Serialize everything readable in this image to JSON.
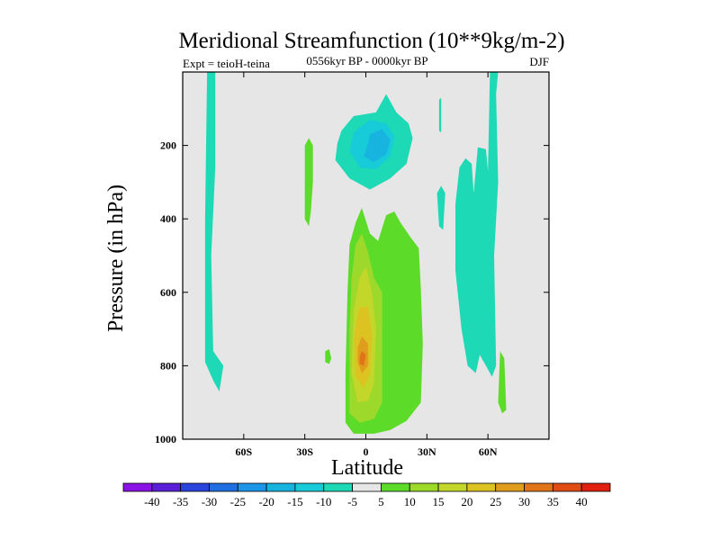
{
  "chart_data": {
    "type": "heatmap",
    "title": "Meridional Streamfunction (10**9kg/m-2)",
    "left_note": "Expt = teioH-teina",
    "center_note": "0556kyr BP - 0000kyr BP",
    "right_note": "DJF",
    "xlabel": "Latitude",
    "ylabel": "Pressure (in hPa)",
    "xlim": [
      -90,
      90
    ],
    "ylim": [
      1000,
      0
    ],
    "x_ticks": [
      {
        "value": -60,
        "label": "60S"
      },
      {
        "value": -30,
        "label": "30S"
      },
      {
        "value": 0,
        "label": "0"
      },
      {
        "value": 30,
        "label": "30N"
      },
      {
        "value": 60,
        "label": "60N"
      }
    ],
    "y_ticks": [
      {
        "value": 200,
        "label": "200"
      },
      {
        "value": 400,
        "label": "400"
      },
      {
        "value": 600,
        "label": "600"
      },
      {
        "value": 800,
        "label": "800"
      },
      {
        "value": 1000,
        "label": "1000"
      }
    ],
    "contour_levels": [
      -40,
      -35,
      -30,
      -25,
      -20,
      -15,
      -10,
      -5,
      5,
      10,
      15,
      20,
      25,
      30,
      35,
      40
    ],
    "level_labels": [
      "-40",
      "-35",
      "-30",
      "-25",
      "-20",
      "-15",
      "-10",
      "-5",
      "5",
      "10",
      "15",
      "20",
      "25",
      "30",
      "35",
      "40"
    ],
    "colorbar_colors": [
      "#8a13e6",
      "#5a1fd6",
      "#2a44dc",
      "#1f6fe0",
      "#1d95e8",
      "#18b4e0",
      "#18cbd8",
      "#1ed9b6",
      "#e6e6e6",
      "#5ddb29",
      "#9cd92b",
      "#c3d62a",
      "#dcc322",
      "#e09c1c",
      "#e07418",
      "#e04d14",
      "#e02010"
    ],
    "background_color": "#e6e6e6",
    "regions": [
      {
        "value": -7,
        "color": "#1ed9b6",
        "points": [
          [
            -78,
            0
          ],
          [
            -74,
            0
          ],
          [
            -74,
            260
          ],
          [
            -76,
            500
          ],
          [
            -75,
            760
          ],
          [
            -70,
            800
          ],
          [
            -72,
            870
          ],
          [
            -75,
            840
          ],
          [
            -79,
            790
          ],
          [
            -79,
            400
          ]
        ]
      },
      {
        "value": -7,
        "color": "#1ed9b6",
        "points": [
          [
            -12,
            160
          ],
          [
            -6,
            120
          ],
          [
            5,
            110
          ],
          [
            10,
            60
          ],
          [
            15,
            110
          ],
          [
            21,
            140
          ],
          [
            23,
            180
          ],
          [
            20,
            250
          ],
          [
            12,
            290
          ],
          [
            2,
            320
          ],
          [
            -8,
            290
          ],
          [
            -15,
            240
          ],
          [
            -14,
            195
          ]
        ]
      },
      {
        "value": -12,
        "color": "#18cbd8",
        "points": [
          [
            -6,
            165
          ],
          [
            2,
            130
          ],
          [
            10,
            140
          ],
          [
            14,
            175
          ],
          [
            12,
            230
          ],
          [
            5,
            265
          ],
          [
            -3,
            260
          ],
          [
            -8,
            215
          ]
        ]
      },
      {
        "value": -17,
        "color": "#18b4e0",
        "points": [
          [
            2,
            170
          ],
          [
            8,
            155
          ],
          [
            12,
            185
          ],
          [
            10,
            225
          ],
          [
            4,
            245
          ],
          [
            -1,
            230
          ],
          [
            1,
            195
          ]
        ]
      },
      {
        "value": -7,
        "color": "#1ed9b6",
        "points": [
          [
            35,
            330
          ],
          [
            37,
            310
          ],
          [
            39,
            330
          ],
          [
            38,
            430
          ],
          [
            36,
            420
          ]
        ]
      },
      {
        "value": -7,
        "color": "#1ed9b6",
        "points": [
          [
            46,
            260
          ],
          [
            49,
            235
          ],
          [
            52,
            250
          ],
          [
            53,
            330
          ],
          [
            55,
            205
          ],
          [
            59,
            210
          ],
          [
            60,
            270
          ],
          [
            61,
            0
          ],
          [
            65,
            0
          ],
          [
            64,
            60
          ],
          [
            65,
            300
          ],
          [
            63,
            500
          ],
          [
            64,
            800
          ],
          [
            62,
            830
          ],
          [
            58,
            790
          ],
          [
            56,
            770
          ],
          [
            54,
            820
          ],
          [
            50,
            800
          ],
          [
            47,
            700
          ],
          [
            44,
            540
          ],
          [
            44,
            360
          ]
        ]
      },
      {
        "value": -7,
        "color": "#1ed9b6",
        "points": [
          [
            36,
            75
          ],
          [
            37,
            70
          ],
          [
            37,
            165
          ],
          [
            36,
            160
          ]
        ]
      },
      {
        "value": 7,
        "color": "#5ddb29",
        "points": [
          [
            -30,
            200
          ],
          [
            -28,
            180
          ],
          [
            -26,
            200
          ],
          [
            -26,
            300
          ],
          [
            -27,
            380
          ],
          [
            -28,
            420
          ],
          [
            -30,
            400
          ],
          [
            -30,
            300
          ]
        ]
      },
      {
        "value": 7,
        "color": "#5ddb29",
        "points": [
          [
            -20,
            760
          ],
          [
            -18,
            755
          ],
          [
            -17,
            780
          ],
          [
            -18,
            795
          ],
          [
            -20,
            790
          ]
        ]
      },
      {
        "value": 7,
        "color": "#5ddb29",
        "points": [
          [
            -5,
            410
          ],
          [
            -2,
            370
          ],
          [
            2,
            440
          ],
          [
            6,
            460
          ],
          [
            10,
            390
          ],
          [
            14,
            380
          ],
          [
            17,
            410
          ],
          [
            22,
            450
          ],
          [
            26,
            480
          ],
          [
            27,
            590
          ],
          [
            28,
            740
          ],
          [
            27,
            900
          ],
          [
            20,
            950
          ],
          [
            12,
            975
          ],
          [
            4,
            985
          ],
          [
            -6,
            985
          ],
          [
            -10,
            955
          ],
          [
            -10,
            820
          ],
          [
            -9,
            600
          ],
          [
            -8,
            470
          ]
        ]
      },
      {
        "value": 7,
        "color": "#5ddb29",
        "points": [
          [
            66,
            760
          ],
          [
            68,
            780
          ],
          [
            69,
            920
          ],
          [
            67,
            930
          ],
          [
            65,
            900
          ]
        ]
      },
      {
        "value": 12,
        "color": "#9cd92b",
        "points": [
          [
            -5,
            470
          ],
          [
            -2,
            440
          ],
          [
            1,
            490
          ],
          [
            4,
            560
          ],
          [
            8,
            600
          ],
          [
            8,
            750
          ],
          [
            8,
            900
          ],
          [
            4,
            945
          ],
          [
            -3,
            955
          ],
          [
            -8,
            930
          ],
          [
            -8,
            700
          ],
          [
            -7,
            560
          ]
        ]
      },
      {
        "value": 17,
        "color": "#c3d62a",
        "points": [
          [
            -3,
            560
          ],
          [
            0,
            530
          ],
          [
            3,
            600
          ],
          [
            5,
            700
          ],
          [
            4,
            850
          ],
          [
            1,
            895
          ],
          [
            -4,
            900
          ],
          [
            -7,
            820
          ],
          [
            -6,
            650
          ]
        ]
      },
      {
        "value": 22,
        "color": "#dcc322",
        "points": [
          [
            -3,
            640
          ],
          [
            1,
            640
          ],
          [
            3,
            720
          ],
          [
            2,
            820
          ],
          [
            -1,
            860
          ],
          [
            -5,
            830
          ],
          [
            -6,
            720
          ]
        ]
      },
      {
        "value": 27,
        "color": "#e09c1c",
        "points": [
          [
            -2,
            720
          ],
          [
            1,
            740
          ],
          [
            1,
            800
          ],
          [
            -2,
            820
          ],
          [
            -4,
            790
          ],
          [
            -4,
            750
          ]
        ]
      },
      {
        "value": 32,
        "color": "#e07418",
        "points": [
          [
            -2,
            760
          ],
          [
            0,
            770
          ],
          [
            -1,
            800
          ],
          [
            -3,
            795
          ],
          [
            -3,
            775
          ]
        ]
      }
    ]
  }
}
